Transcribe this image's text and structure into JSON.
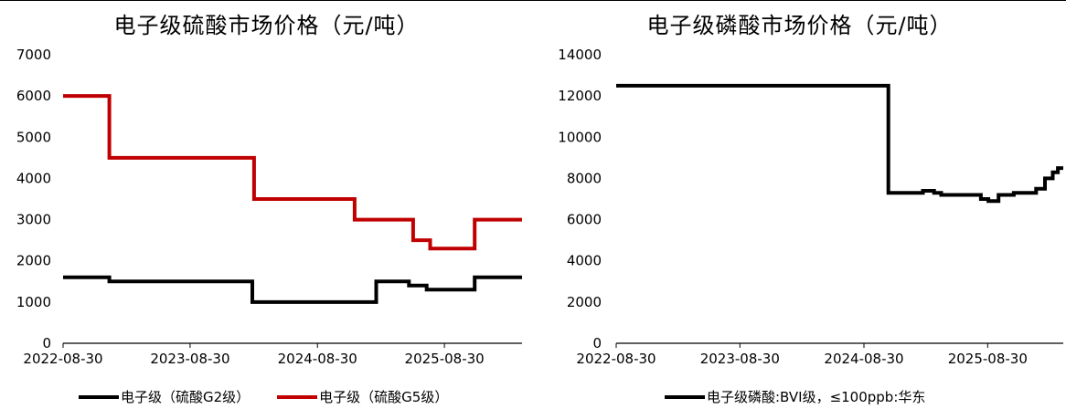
{
  "chart_data": [
    {
      "type": "line",
      "title": "电子级硫酸市场价格（元/吨）",
      "xlabel": "",
      "ylabel": "",
      "ylim": [
        0,
        7000
      ],
      "yticks": [
        "0",
        "1000",
        "2000",
        "3000",
        "4000",
        "5000",
        "6000",
        "7000"
      ],
      "x_ticks": [
        "2022-08-30",
        "2023-08-30",
        "2024-08-30",
        "2025-08-30"
      ],
      "x_range": [
        "2022-08-30",
        "2026-04-10"
      ],
      "legend_position": "bottom",
      "grid": false,
      "series": [
        {
          "name": "电子级（硫酸G2级）",
          "color": "#000000",
          "points": [
            [
              "2022-08-30",
              1600
            ],
            [
              "2023-01-10",
              1600
            ],
            [
              "2023-01-10",
              1500
            ],
            [
              "2024-02-25",
              1500
            ],
            [
              "2024-02-25",
              1000
            ],
            [
              "2025-02-15",
              1000
            ],
            [
              "2025-02-15",
              1500
            ],
            [
              "2025-05-20",
              1500
            ],
            [
              "2025-05-20",
              1400
            ],
            [
              "2025-07-10",
              1400
            ],
            [
              "2025-07-10",
              1300
            ],
            [
              "2025-11-25",
              1300
            ],
            [
              "2025-11-25",
              1600
            ],
            [
              "2026-04-10",
              1600
            ]
          ]
        },
        {
          "name": "电子级（硫酸G5级）",
          "color": "#c00000",
          "points": [
            [
              "2022-08-30",
              6000
            ],
            [
              "2023-01-10",
              6000
            ],
            [
              "2023-01-10",
              4500
            ],
            [
              "2024-03-01",
              4500
            ],
            [
              "2024-03-01",
              3500
            ],
            [
              "2024-12-15",
              3500
            ],
            [
              "2024-12-15",
              3000
            ],
            [
              "2025-06-01",
              3000
            ],
            [
              "2025-06-01",
              2500
            ],
            [
              "2025-07-20",
              2500
            ],
            [
              "2025-07-20",
              2300
            ],
            [
              "2025-11-25",
              2300
            ],
            [
              "2025-11-25",
              3000
            ],
            [
              "2026-04-10",
              3000
            ]
          ]
        }
      ]
    },
    {
      "type": "line",
      "title": "电子级磷酸市场价格（元/吨）",
      "xlabel": "",
      "ylabel": "",
      "ylim": [
        0,
        14000
      ],
      "yticks": [
        "0",
        "2000",
        "4000",
        "6000",
        "8000",
        "10000",
        "12000",
        "14000"
      ],
      "x_ticks": [
        "2022-08-30",
        "2023-08-30",
        "2024-08-30",
        "2025-08-30"
      ],
      "x_range": [
        "2022-08-30",
        "2026-04-10"
      ],
      "legend_position": "bottom",
      "grid": false,
      "series": [
        {
          "name": "电子级磷酸:BVI级，≤100ppb:华东",
          "color": "#000000",
          "points": [
            [
              "2022-08-30",
              12500
            ],
            [
              "2024-11-10",
              12500
            ],
            [
              "2024-11-10",
              7300
            ],
            [
              "2025-02-20",
              7300
            ],
            [
              "2025-02-20",
              7400
            ],
            [
              "2025-03-25",
              7400
            ],
            [
              "2025-03-25",
              7300
            ],
            [
              "2025-04-15",
              7300
            ],
            [
              "2025-04-15",
              7200
            ],
            [
              "2025-08-10",
              7200
            ],
            [
              "2025-08-10",
              7000
            ],
            [
              "2025-09-01",
              7000
            ],
            [
              "2025-09-01",
              6900
            ],
            [
              "2025-10-01",
              6900
            ],
            [
              "2025-10-01",
              7200
            ],
            [
              "2025-11-15",
              7200
            ],
            [
              "2025-11-15",
              7300
            ],
            [
              "2026-01-20",
              7300
            ],
            [
              "2026-01-20",
              7500
            ],
            [
              "2026-02-15",
              7500
            ],
            [
              "2026-02-15",
              8000
            ],
            [
              "2026-03-10",
              8000
            ],
            [
              "2026-03-10",
              8300
            ],
            [
              "2026-03-25",
              8300
            ],
            [
              "2026-03-25",
              8500
            ],
            [
              "2026-04-10",
              8500
            ]
          ]
        }
      ]
    }
  ]
}
